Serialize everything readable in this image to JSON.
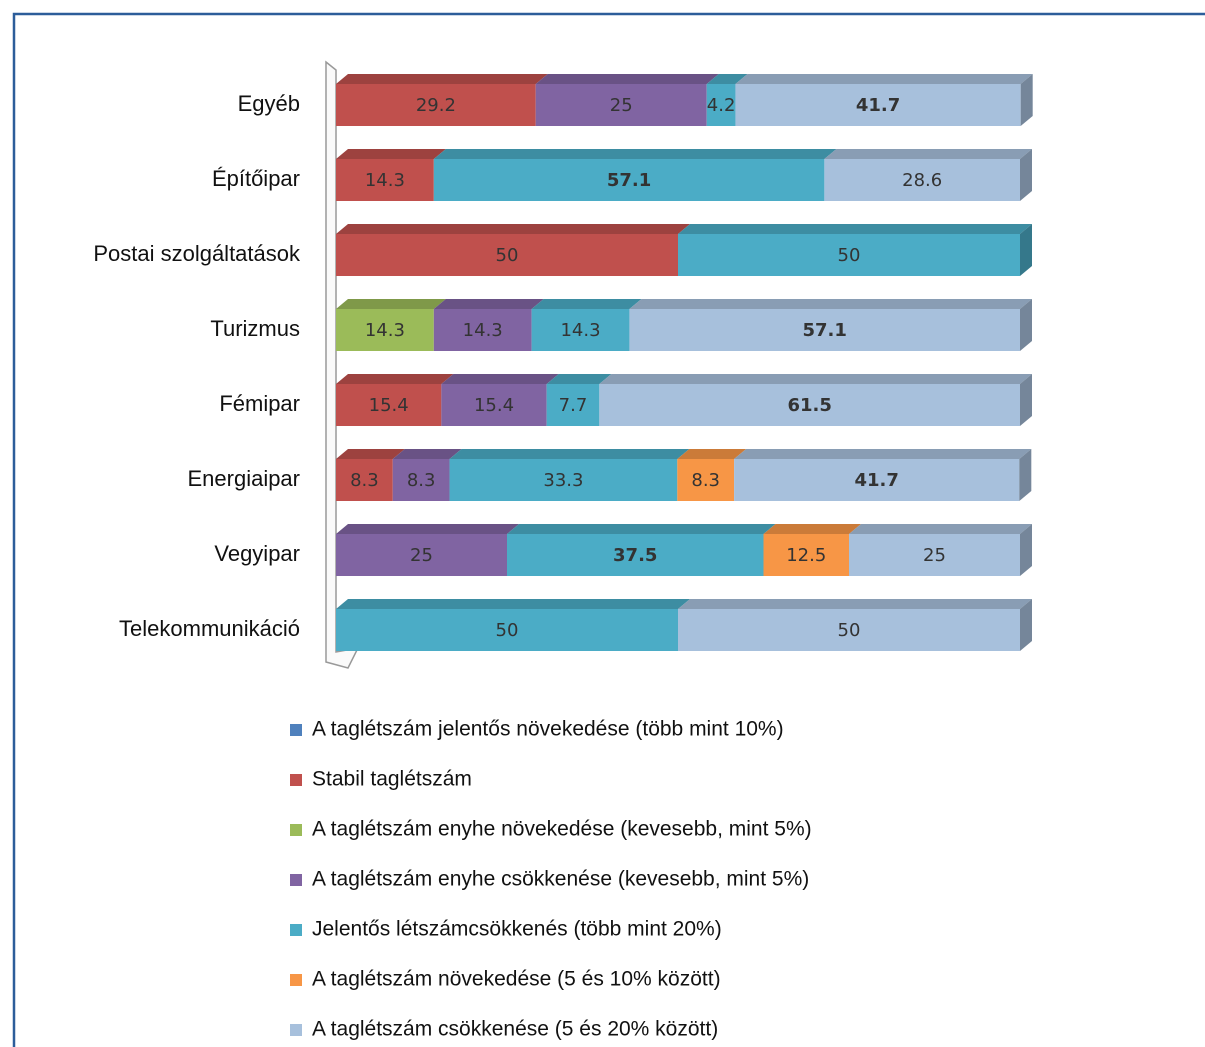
{
  "chart_data": {
    "type": "stacked-bar-3d",
    "categories": [
      "Egyéb",
      "Építőipar",
      "Postai szolgáltatások",
      "Turizmus",
      "Fémipar",
      "Energiaipar",
      "Vegyipar",
      "Telekommunikáció"
    ],
    "xlim": [
      0,
      100
    ],
    "series": [
      {
        "name": "A taglétszám jelentős növekedése (több mint 10%)",
        "color": "#4f81bd",
        "values": [
          null,
          null,
          null,
          null,
          null,
          null,
          null,
          null
        ]
      },
      {
        "name": "Stabil taglétszám",
        "color": "#c0504d",
        "values": [
          29.2,
          14.3,
          50,
          null,
          15.4,
          8.3,
          null,
          null
        ]
      },
      {
        "name": "A taglétszám enyhe növekedése (kevesebb, mint 5%)",
        "color": "#9bbb59",
        "values": [
          null,
          null,
          null,
          14.3,
          null,
          null,
          null,
          null
        ]
      },
      {
        "name": "A taglétszám enyhe csökkenése (kevesebb, mint 5%)",
        "color": "#8064a2",
        "values": [
          25,
          null,
          null,
          14.3,
          15.4,
          8.3,
          25,
          null
        ]
      },
      {
        "name": "Jelentős létszámcsökkenés (több mint 20%)",
        "color": "#4bacc6",
        "values": [
          4.2,
          57.1,
          50,
          14.3,
          7.7,
          33.3,
          37.5,
          50
        ]
      },
      {
        "name": "A taglétszám növekedése (5 és 10% között)",
        "color": "#f79646",
        "values": [
          null,
          null,
          null,
          null,
          null,
          8.3,
          12.5,
          null
        ]
      },
      {
        "name": "A taglétszám csökkenése (5 és 20% között)",
        "color": "#a7c0dc",
        "values": [
          41.7,
          28.6,
          null,
          57.1,
          61.5,
          41.7,
          25,
          50
        ]
      }
    ]
  }
}
